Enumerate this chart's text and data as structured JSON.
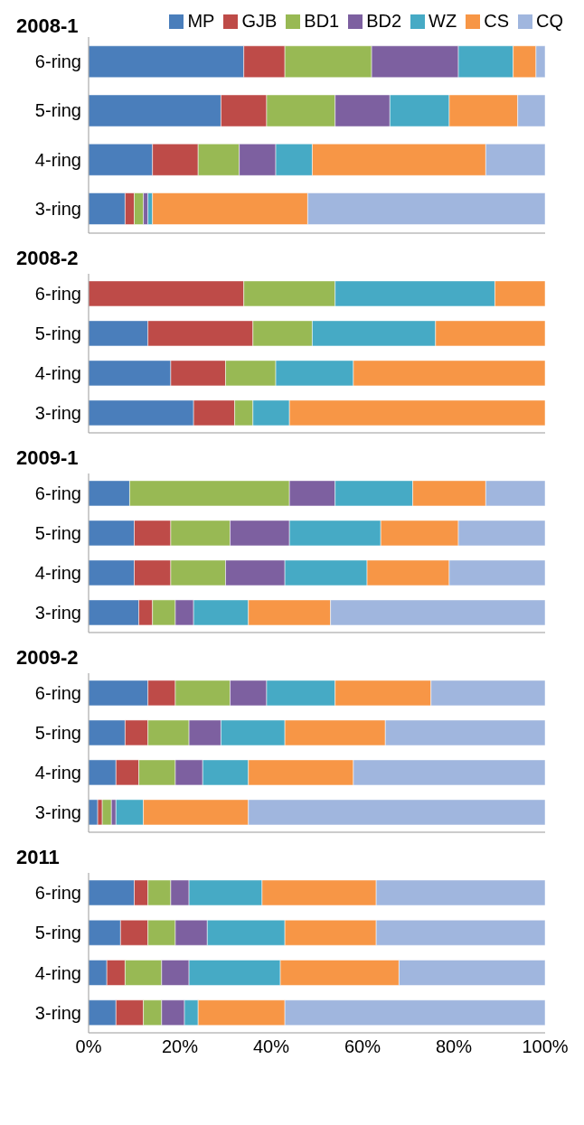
{
  "chart_data": [
    {
      "type": "bar",
      "title": "2008-1",
      "orientation": "horizontal",
      "stacked": true,
      "legend": "top right",
      "tick_labels": "y",
      "categories": [
        "6-ring",
        "5-ring",
        "4-ring",
        "3-ring"
      ],
      "xlim": [
        0,
        100
      ],
      "series": [
        {
          "name": "MP",
          "color": "#4a7ebb",
          "values": [
            34,
            29,
            14,
            8
          ]
        },
        {
          "name": "GJB",
          "color": "#be4b48",
          "values": [
            9,
            10,
            10,
            2
          ]
        },
        {
          "name": "BD1",
          "color": "#98b954",
          "values": [
            19,
            15,
            9,
            2
          ]
        },
        {
          "name": "BD2",
          "color": "#7d60a0",
          "values": [
            19,
            12,
            8,
            1
          ]
        },
        {
          "name": "WZ",
          "color": "#46aac5",
          "values": [
            12,
            13,
            8,
            1
          ]
        },
        {
          "name": "CS",
          "color": "#f79646",
          "values": [
            5,
            15,
            38,
            34
          ]
        },
        {
          "name": "CQ",
          "color": "#a0b6de",
          "values": [
            2,
            6,
            13,
            52
          ]
        }
      ]
    },
    {
      "type": "bar",
      "title": "2008-2",
      "orientation": "horizontal",
      "stacked": true,
      "tick_labels": "y",
      "categories": [
        "6-ring",
        "5-ring",
        "4-ring",
        "3-ring"
      ],
      "xlim": [
        0,
        100
      ],
      "series": [
        {
          "color": "#4a7ebb",
          "values": [
            0,
            13,
            18,
            23
          ]
        },
        {
          "color": "#be4b48",
          "values": [
            34,
            23,
            12,
            9
          ]
        },
        {
          "color": "#98b954",
          "values": [
            20,
            13,
            11,
            4
          ]
        },
        {
          "color": "#7d60a0",
          "values": [
            0,
            0,
            0,
            0
          ]
        },
        {
          "color": "#46aac5",
          "values": [
            35,
            27,
            17,
            8
          ]
        },
        {
          "color": "#f79646",
          "values": [
            11,
            24,
            42,
            56
          ]
        },
        {
          "color": "#a0b6de",
          "values": [
            0,
            0,
            0,
            0
          ]
        }
      ]
    },
    {
      "type": "bar",
      "title": "2009-1",
      "orientation": "horizontal",
      "stacked": true,
      "tick_labels": "y",
      "categories": [
        "6-ring",
        "5-ring",
        "4-ring",
        "3-ring"
      ],
      "xlim": [
        0,
        100
      ],
      "series": [
        {
          "color": "#4a7ebb",
          "values": [
            9,
            10,
            10,
            11
          ]
        },
        {
          "color": "#be4b48",
          "values": [
            0,
            8,
            8,
            3
          ]
        },
        {
          "color": "#98b954",
          "values": [
            35,
            13,
            12,
            5
          ]
        },
        {
          "color": "#7d60a0",
          "values": [
            10,
            13,
            13,
            4
          ]
        },
        {
          "color": "#46aac5",
          "values": [
            17,
            20,
            18,
            12
          ]
        },
        {
          "color": "#f79646",
          "values": [
            16,
            17,
            18,
            18
          ]
        },
        {
          "color": "#a0b6de",
          "values": [
            13,
            19,
            21,
            47
          ]
        }
      ]
    },
    {
      "type": "bar",
      "title": "2009-2",
      "orientation": "horizontal",
      "stacked": true,
      "tick_labels": "y",
      "categories": [
        "6-ring",
        "5-ring",
        "4-ring",
        "3-ring"
      ],
      "xlim": [
        0,
        100
      ],
      "series": [
        {
          "color": "#4a7ebb",
          "values": [
            13,
            8,
            6,
            2
          ]
        },
        {
          "color": "#be4b48",
          "values": [
            6,
            5,
            5,
            1
          ]
        },
        {
          "color": "#98b954",
          "values": [
            12,
            9,
            8,
            2
          ]
        },
        {
          "color": "#7d60a0",
          "values": [
            8,
            7,
            6,
            1
          ]
        },
        {
          "color": "#46aac5",
          "values": [
            15,
            14,
            10,
            6
          ]
        },
        {
          "color": "#f79646",
          "values": [
            21,
            22,
            23,
            23
          ]
        },
        {
          "color": "#a0b6de",
          "values": [
            25,
            35,
            42,
            65
          ]
        }
      ]
    },
    {
      "type": "bar",
      "title": "2011",
      "orientation": "horizontal",
      "stacked": true,
      "categories": [
        "6-ring",
        "5-ring",
        "4-ring",
        "3-ring"
      ],
      "xlim": [
        0,
        100
      ],
      "xticks": [
        {
          "value": 0,
          "label": "0%"
        },
        {
          "value": 20,
          "label": "20%"
        },
        {
          "value": 40,
          "label": "40%"
        },
        {
          "value": 60,
          "label": "60%"
        },
        {
          "value": 80,
          "label": "80%"
        },
        {
          "value": 100,
          "label": "100%"
        }
      ],
      "series": [
        {
          "color": "#4a7ebb",
          "values": [
            10,
            7,
            4,
            6
          ]
        },
        {
          "color": "#be4b48",
          "values": [
            3,
            6,
            4,
            6
          ]
        },
        {
          "color": "#98b954",
          "values": [
            5,
            6,
            8,
            4
          ]
        },
        {
          "color": "#7d60a0",
          "values": [
            4,
            7,
            6,
            5
          ]
        },
        {
          "color": "#46aac5",
          "values": [
            16,
            17,
            20,
            3
          ]
        },
        {
          "color": "#f79646",
          "values": [
            25,
            20,
            26,
            19
          ]
        },
        {
          "color": "#a0b6de",
          "values": [
            37,
            37,
            32,
            57
          ]
        }
      ]
    }
  ]
}
